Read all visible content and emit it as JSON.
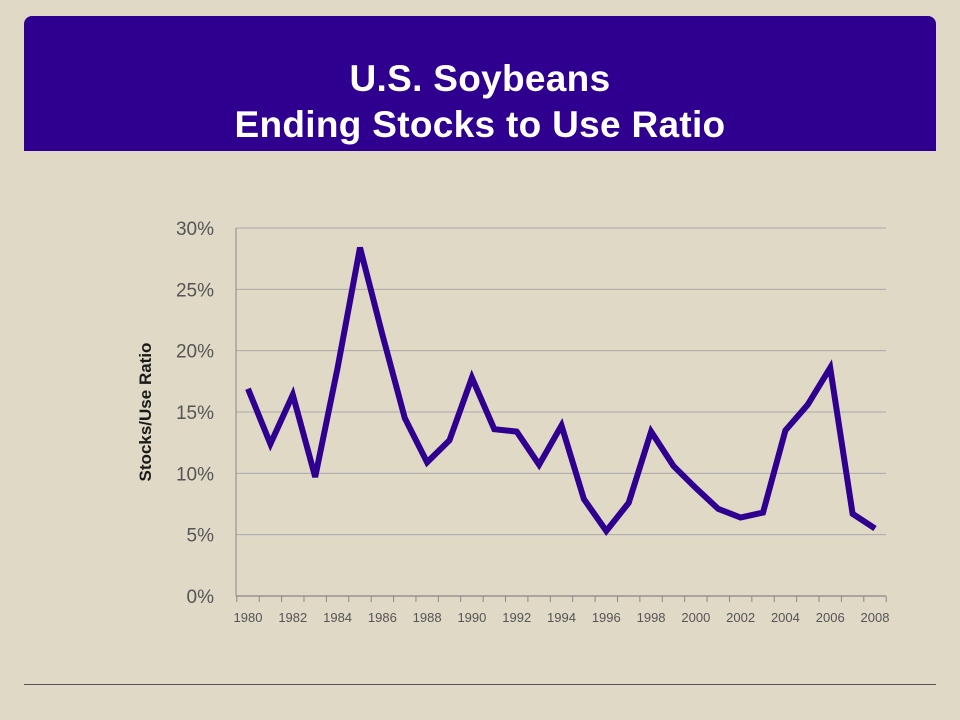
{
  "slide": {
    "title_line1": "U.S. Soybeans",
    "title_line2": "Ending Stocks to Use Ratio"
  },
  "chart_data": {
    "type": "line",
    "title": "",
    "xlabel": "",
    "ylabel": "Stocks/Use Ratio",
    "xlim": [
      1980,
      2008
    ],
    "ylim": [
      0,
      30
    ],
    "yunit": "%",
    "yticks": [
      0,
      5,
      10,
      15,
      20,
      25,
      30
    ],
    "ytick_labels": [
      "0%",
      "5%",
      "10%",
      "15%",
      "20%",
      "25%",
      "30%"
    ],
    "xticks": [
      1980,
      1982,
      1984,
      1986,
      1988,
      1990,
      1992,
      1994,
      1996,
      1998,
      2000,
      2002,
      2004,
      2006,
      2008
    ],
    "xtick_labels": [
      "1980",
      "1982",
      "1984",
      "1986",
      "1988",
      "1990",
      "1992",
      "1994",
      "1996",
      "1998",
      "2000",
      "2002",
      "2004",
      "2006",
      "2008"
    ],
    "grid": "horizontal",
    "legend": "none",
    "colors": {
      "line": "#2f0090",
      "grid": "#a9a9a9",
      "axis": "#888888",
      "tick_text": "#555555",
      "label": "#1a1a1a"
    },
    "series": [
      {
        "x": [
          1980,
          1981,
          1982,
          1983,
          1984,
          1985,
          1986,
          1987,
          1988,
          1989,
          1990,
          1991,
          1992,
          1993,
          1994,
          1995,
          1996,
          1997,
          1998,
          1999,
          2000,
          2001,
          2002,
          2003,
          2004,
          2005,
          2006,
          2007,
          2008
        ],
        "values": [
          16.9,
          12.4,
          16.4,
          9.7,
          18.6,
          28.4,
          21.3,
          14.5,
          10.9,
          12.7,
          17.8,
          13.6,
          13.4,
          10.7,
          13.9,
          7.9,
          5.3,
          7.6,
          13.4,
          10.6,
          8.8,
          7.1,
          6.4,
          6.8,
          13.5,
          15.6,
          18.6,
          6.7,
          5.5
        ]
      }
    ]
  }
}
